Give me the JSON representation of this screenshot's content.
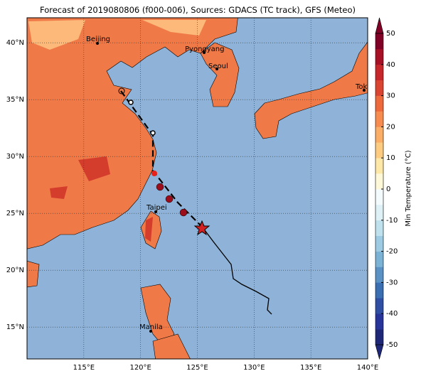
{
  "header": {
    "title": "Forecast of 2019080806 (f000-006), Sources: GDACS (TC track), GFS (Meteo)"
  },
  "map": {
    "lon_range": [
      110,
      140
    ],
    "lat_range": [
      12.2,
      42.2
    ],
    "lon_ticks": [
      {
        "value": 115,
        "label": "115°E"
      },
      {
        "value": 120,
        "label": "120°E"
      },
      {
        "value": 125,
        "label": "125°E"
      },
      {
        "value": 130,
        "label": "130°E"
      },
      {
        "value": 135,
        "label": "135°E"
      },
      {
        "value": 140,
        "label": "140°E"
      }
    ],
    "lat_ticks": [
      {
        "value": 15,
        "label": "15°N"
      },
      {
        "value": 20,
        "label": "20°N"
      },
      {
        "value": 25,
        "label": "25°N"
      },
      {
        "value": 30,
        "label": "30°N"
      },
      {
        "value": 35,
        "label": "35°N"
      },
      {
        "value": 40,
        "label": "40°N"
      }
    ],
    "cities": [
      "Beijing",
      "Pyongyang",
      "Seoul",
      "Tokyo",
      "Taipei",
      "Manila"
    ]
  },
  "colorbar": {
    "label": "Min Temperature (°C)",
    "range": [
      -50,
      50
    ],
    "ticks": [
      -50,
      -40,
      -30,
      -20,
      -10,
      0,
      10,
      20,
      30,
      40,
      50
    ],
    "colors": [
      "#1f2878",
      "#27349a",
      "#2e4fa3",
      "#3a6fb4",
      "#5b92c6",
      "#7ab3d6",
      "#9ccbe3",
      "#bfe1ee",
      "#ddf1f6",
      "#f4fbfd",
      "#fff8d8",
      "#fee8a8",
      "#fdcc80",
      "#fcae66",
      "#f88c4f",
      "#ee6a3d",
      "#db4430",
      "#c7262a",
      "#a81026",
      "#800026"
    ]
  }
}
